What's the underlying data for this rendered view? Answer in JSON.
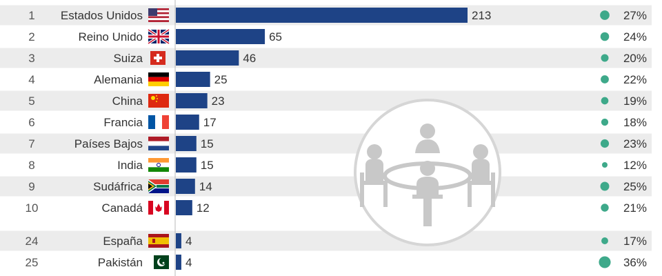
{
  "chart_data": {
    "type": "bar",
    "orientation": "horizontal",
    "ranks": [
      1,
      2,
      3,
      4,
      5,
      6,
      7,
      8,
      9,
      10,
      24,
      25
    ],
    "categories": [
      "Estados Unidos",
      "Reino Unido",
      "Suiza",
      "Alemania",
      "China",
      "Francia",
      "Países Bajos",
      "India",
      "Sudáfrica",
      "Canadá",
      "España",
      "Pakistán"
    ],
    "values": [
      213,
      65,
      46,
      25,
      23,
      17,
      15,
      15,
      14,
      12,
      4,
      4
    ],
    "percent_labels": [
      "27%",
      "24%",
      "20%",
      "22%",
      "19%",
      "18%",
      "23%",
      "12%",
      "25%",
      "21%",
      "17%",
      "36%"
    ],
    "percent_values": [
      27,
      24,
      20,
      22,
      19,
      18,
      23,
      12,
      25,
      21,
      17,
      36
    ],
    "flags": [
      "flag-usa",
      "flag-uk",
      "flag-switzerland",
      "flag-germany",
      "flag-china",
      "flag-france",
      "flag-netherlands",
      "flag-india",
      "flag-south-africa",
      "flag-canada",
      "flag-spain",
      "flag-pakistan"
    ],
    "bar_color": "#1e4386",
    "dot_color": "#3ea98a",
    "stripe_color": "#ececec",
    "decoration_icon": "meeting-table-icon"
  }
}
